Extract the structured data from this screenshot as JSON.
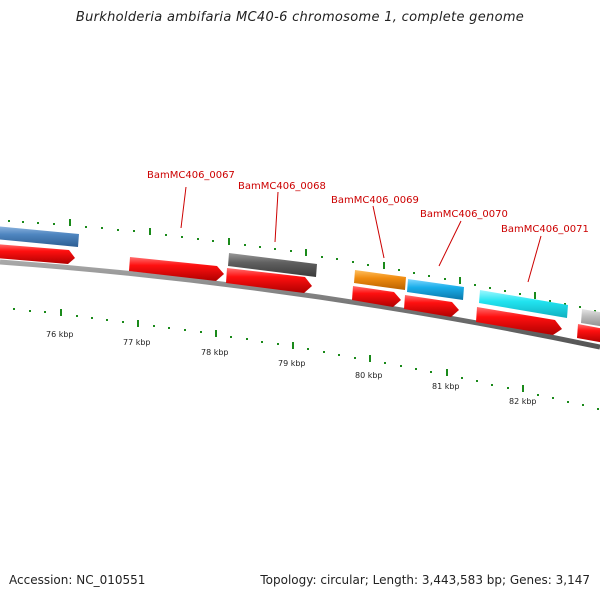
{
  "title": "Burkholderia ambifaria MC40-6 chromosome 1, complete genome",
  "footer": {
    "accession": "Accession: NC_010551",
    "summary": "Topology: circular; Length: 3,443,583 bp; Genes: 3,147"
  },
  "colors": {
    "red": "#ee0000",
    "backbone": "#777777",
    "tick": "#1a8a1a",
    "label": "#cc0000",
    "steel_blue": "#4f86c0",
    "dark_gray": "#606060",
    "orange": "#f08c10",
    "blue": "#1aaeea",
    "cyan": "#22e4f0",
    "light_gray": "#bdbdbd"
  },
  "gene_labels": [
    "BamMC406_0067",
    "BamMC406_0068",
    "BamMC406_0069",
    "BamMC406_0070",
    "BamMC406_0071"
  ],
  "kbp_labels": [
    "76 kbp",
    "77 kbp",
    "78 kbp",
    "79 kbp",
    "80 kbp",
    "81 kbp",
    "82 kbp"
  ]
}
